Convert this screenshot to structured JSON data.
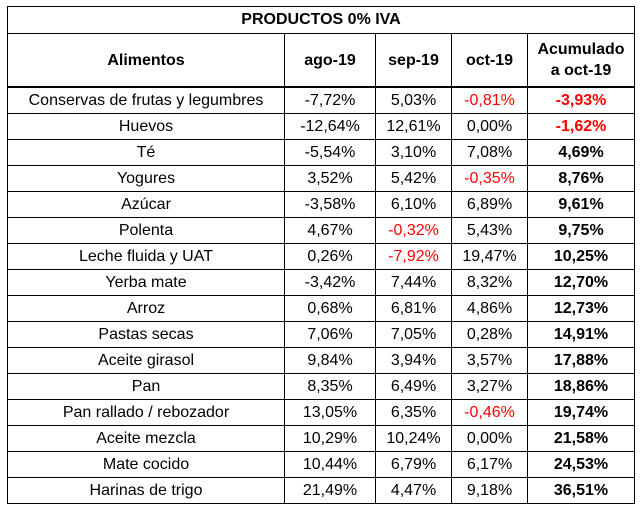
{
  "table": {
    "title": "PRODUCTOS 0% IVA",
    "headers": [
      "Alimentos",
      "ago-19",
      "sep-19",
      "oct-19",
      "Acumulado a oct-19"
    ],
    "header_acumulado_line1": "Acumulado",
    "header_acumulado_line2": "a oct-19",
    "rows": [
      {
        "name": "Conservas de frutas y legumbres",
        "ago": "-7,72%",
        "sep": "5,03%",
        "oct": "-0,81%",
        "acc": "-3,93%"
      },
      {
        "name": "Huevos",
        "ago": "-12,64%",
        "sep": "12,61%",
        "oct": "0,00%",
        "acc": "-1,62%"
      },
      {
        "name": "Té",
        "ago": "-5,54%",
        "sep": "3,10%",
        "oct": "7,08%",
        "acc": "4,69%"
      },
      {
        "name": "Yogures",
        "ago": "3,52%",
        "sep": "5,42%",
        "oct": "-0,35%",
        "acc": "8,76%"
      },
      {
        "name": "Azúcar",
        "ago": "-3,58%",
        "sep": "6,10%",
        "oct": "6,89%",
        "acc": "9,61%"
      },
      {
        "name": "Polenta",
        "ago": "4,67%",
        "sep": "-0,32%",
        "oct": "5,43%",
        "acc": "9,75%"
      },
      {
        "name": "Leche fluida y UAT",
        "ago": "0,26%",
        "sep": "-7,92%",
        "oct": "19,47%",
        "acc": "10,25%"
      },
      {
        "name": "Yerba mate",
        "ago": "-3,42%",
        "sep": "7,44%",
        "oct": "8,32%",
        "acc": "12,70%"
      },
      {
        "name": "Arroz",
        "ago": "0,68%",
        "sep": "6,81%",
        "oct": "4,86%",
        "acc": "12,73%"
      },
      {
        "name": "Pastas secas",
        "ago": "7,06%",
        "sep": "7,05%",
        "oct": "0,28%",
        "acc": "14,91%"
      },
      {
        "name": "Aceite girasol",
        "ago": "9,84%",
        "sep": "3,94%",
        "oct": "3,57%",
        "acc": "17,88%"
      },
      {
        "name": "Pan",
        "ago": "8,35%",
        "sep": "6,49%",
        "oct": "3,27%",
        "acc": "18,86%"
      },
      {
        "name": "Pan rallado / rebozador",
        "ago": "13,05%",
        "sep": "6,35%",
        "oct": "-0,46%",
        "acc": "19,74%"
      },
      {
        "name": "Aceite mezcla",
        "ago": "10,29%",
        "sep": "10,24%",
        "oct": "0,00%",
        "acc": "21,58%"
      },
      {
        "name": "Mate cocido",
        "ago": "10,44%",
        "sep": "6,79%",
        "oct": "6,17%",
        "acc": "24,53%"
      },
      {
        "name": "Harinas de trigo",
        "ago": "21,49%",
        "sep": "4,47%",
        "oct": "9,18%",
        "acc": "36,51%"
      }
    ]
  },
  "colors": {
    "negative_highlight": "#ff0000",
    "text": "#000000",
    "border": "#000000"
  }
}
